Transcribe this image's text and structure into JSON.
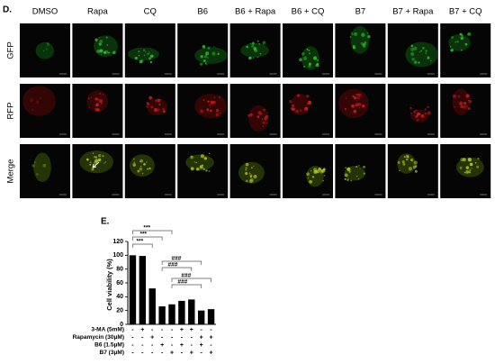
{
  "panel_d": {
    "label": "D.",
    "columns": [
      "DMSO",
      "Rapa",
      "CQ",
      "B6",
      "B6 + Rapa",
      "B6 + CQ",
      "B7",
      "B7 + Rapa",
      "B7 + CQ"
    ],
    "rows": [
      "GFP",
      "RFP",
      "Merge"
    ]
  },
  "chart_data": {
    "type": "bar",
    "label": "E.",
    "ylabel": "Cell viability (%)",
    "values": [
      100,
      99,
      52,
      26,
      29,
      34,
      36,
      20,
      22
    ],
    "color": "#000000",
    "ylim": [
      0,
      120
    ],
    "yticks": [
      0,
      20,
      40,
      60,
      80,
      100,
      120
    ],
    "annotations": [
      "***",
      "***",
      "***",
      "###",
      "###",
      "###",
      "###"
    ],
    "conditions": {
      "names": [
        "3-MA (5mM)",
        "Rapamycin (30μM)",
        "B6 (1.5μM)",
        "B7 (3μM)"
      ],
      "signs": [
        [
          "-",
          "+",
          "-",
          "-",
          "-",
          "+",
          "+",
          "-",
          "-"
        ],
        [
          "-",
          "-",
          "+",
          "-",
          "-",
          "-",
          "-",
          "+",
          "+"
        ],
        [
          "-",
          "-",
          "-",
          "+",
          "-",
          "+",
          "-",
          "+",
          "-"
        ],
        [
          "-",
          "-",
          "-",
          "-",
          "+",
          "-",
          "+",
          "-",
          "+"
        ]
      ]
    }
  }
}
